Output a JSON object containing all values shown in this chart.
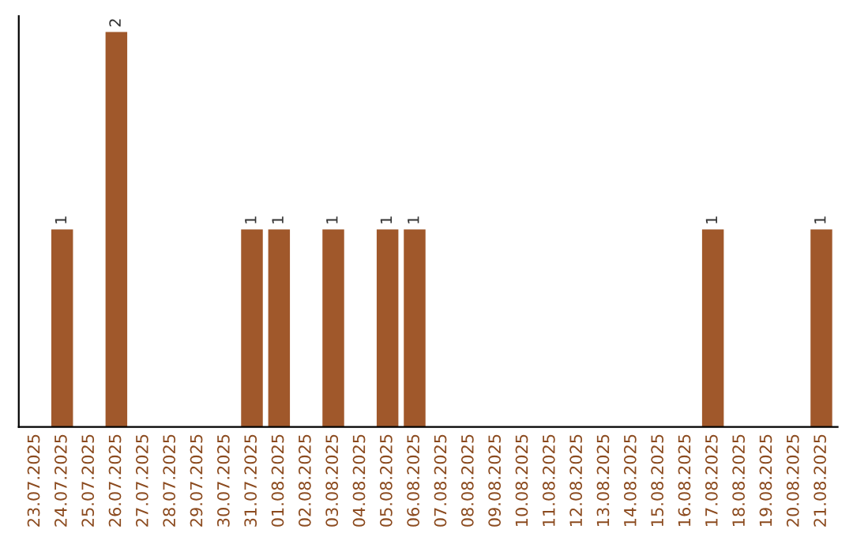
{
  "chart_data": {
    "type": "bar",
    "categories": [
      "23.07.2025",
      "24.07.2025",
      "25.07.2025",
      "26.07.2025",
      "27.07.2025",
      "28.07.2025",
      "29.07.2025",
      "30.07.2025",
      "31.07.2025",
      "01.08.2025",
      "02.08.2025",
      "03.08.2025",
      "04.08.2025",
      "05.08.2025",
      "06.08.2025",
      "07.08.2025",
      "08.08.2025",
      "09.08.2025",
      "10.08.2025",
      "11.08.2025",
      "12.08.2025",
      "13.08.2025",
      "14.08.2025",
      "15.08.2025",
      "16.08.2025",
      "17.08.2025",
      "18.08.2025",
      "19.08.2025",
      "20.08.2025",
      "21.08.2025"
    ],
    "values": [
      0,
      1,
      0,
      2,
      0,
      0,
      0,
      0,
      1,
      1,
      0,
      1,
      0,
      1,
      1,
      0,
      0,
      0,
      0,
      0,
      0,
      0,
      0,
      0,
      0,
      1,
      0,
      0,
      0,
      1
    ],
    "value_labels": [
      null,
      "1",
      null,
      "2",
      null,
      null,
      null,
      null,
      "1",
      "1",
      null,
      "1",
      null,
      "1",
      "1",
      null,
      null,
      null,
      null,
      null,
      null,
      null,
      null,
      null,
      null,
      "1",
      null,
      null,
      null,
      "1"
    ],
    "color": "#a0582b",
    "ylim": [
      0,
      2.08
    ],
    "tick_labels": "x",
    "grid": false
  }
}
